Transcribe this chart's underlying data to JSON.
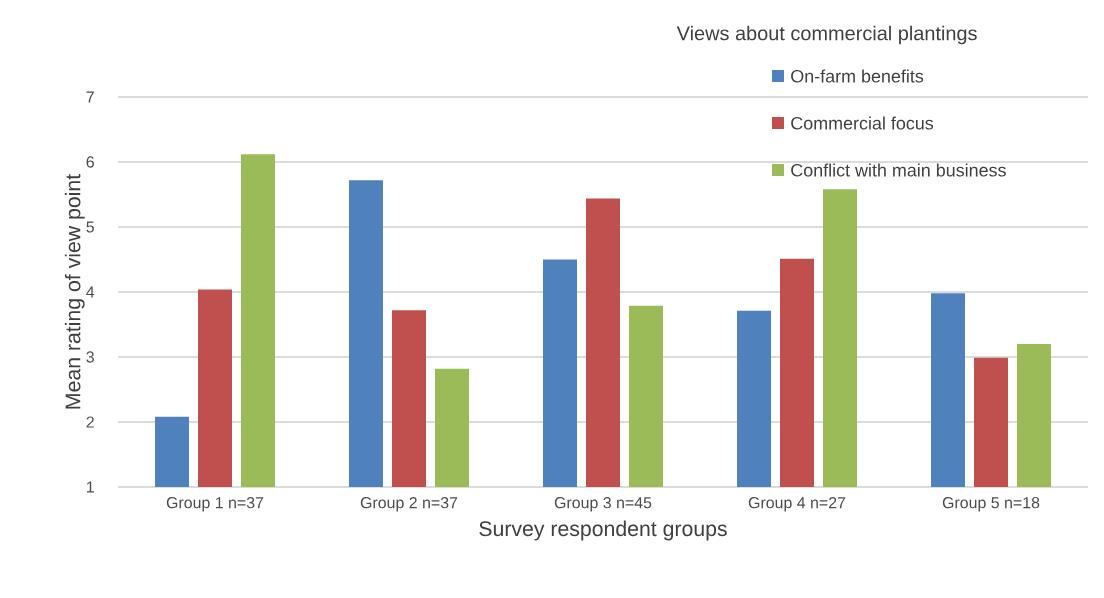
{
  "chart_data": {
    "type": "bar",
    "xlabel": "Survey respondent groups",
    "ylabel": "Mean rating of view point",
    "legend_title": "Views about commercial plantings",
    "categories": [
      "Group 1 n=37",
      "Group 2 n=37",
      "Group 3 n=45",
      "Group 4 n=27",
      "Group 5 n=18"
    ],
    "series": [
      {
        "name": "On-farm benefits",
        "color": "#4f81bd",
        "values": [
          2.08,
          5.72,
          4.5,
          3.71,
          3.98
        ]
      },
      {
        "name": "Commercial focus",
        "color": "#c0504d",
        "values": [
          4.04,
          3.72,
          5.44,
          4.51,
          2.99
        ]
      },
      {
        "name": "Conflict with main business",
        "color": "#9bbb59",
        "values": [
          6.12,
          2.82,
          3.79,
          5.58,
          3.2
        ]
      }
    ],
    "ylim": [
      1,
      7
    ],
    "yticks": [
      1,
      2,
      3,
      4,
      5,
      6,
      7
    ],
    "grid": "y",
    "legend": "top right"
  }
}
